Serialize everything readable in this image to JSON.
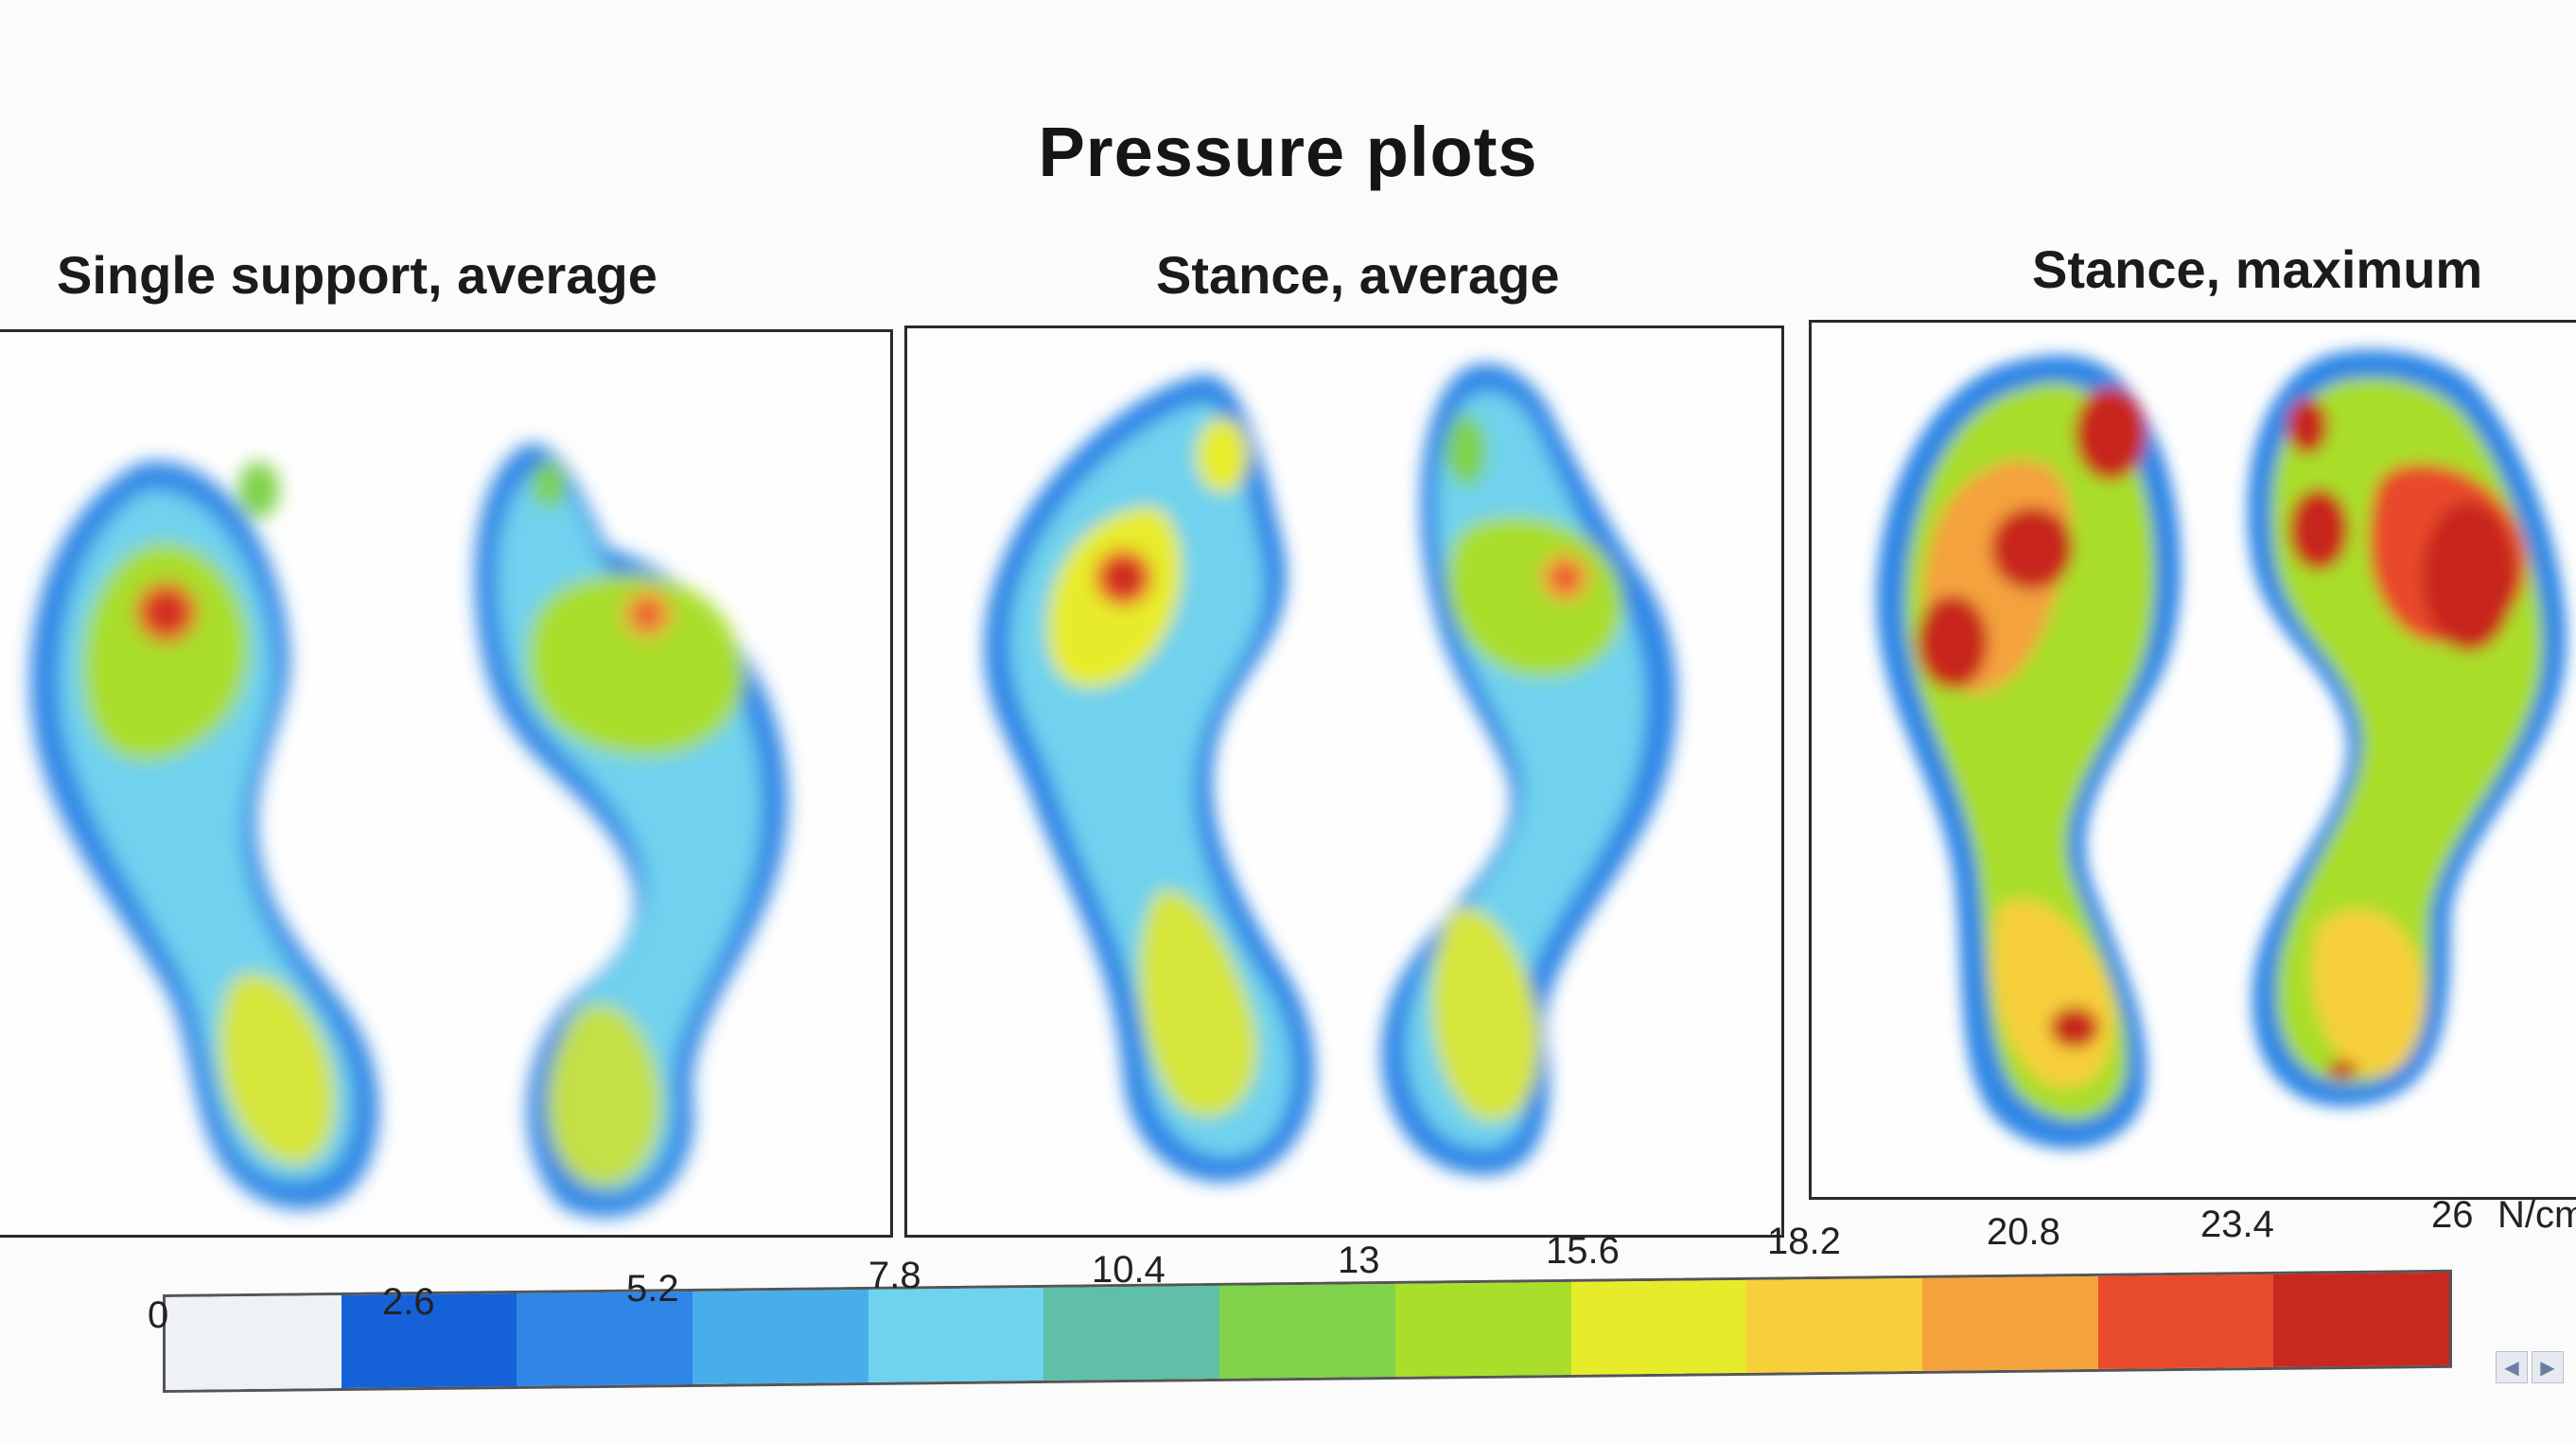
{
  "title": "Pressure plots",
  "panels": [
    {
      "title": "Single support, average"
    },
    {
      "title": "Stance, average"
    },
    {
      "title": "Stance, maximum"
    }
  ],
  "colorbar": {
    "ticks": [
      "0",
      "2.6",
      "5.2",
      "7.8",
      "10.4",
      "13",
      "15.6",
      "18.2",
      "20.8",
      "23.4",
      "26"
    ],
    "unit": "N/cm",
    "colors": [
      "#eef1f5",
      "#1461d8",
      "#2f86e6",
      "#48aeea",
      "#6fd2ee",
      "#5fbfa8",
      "#7fd24a",
      "#a9de2a",
      "#e7ec2a",
      "#f6cf3a",
      "#f4a23c",
      "#e84a2c",
      "#c8281e"
    ]
  },
  "scroll": {
    "left_icon": "◀",
    "right_icon": "▶"
  }
}
